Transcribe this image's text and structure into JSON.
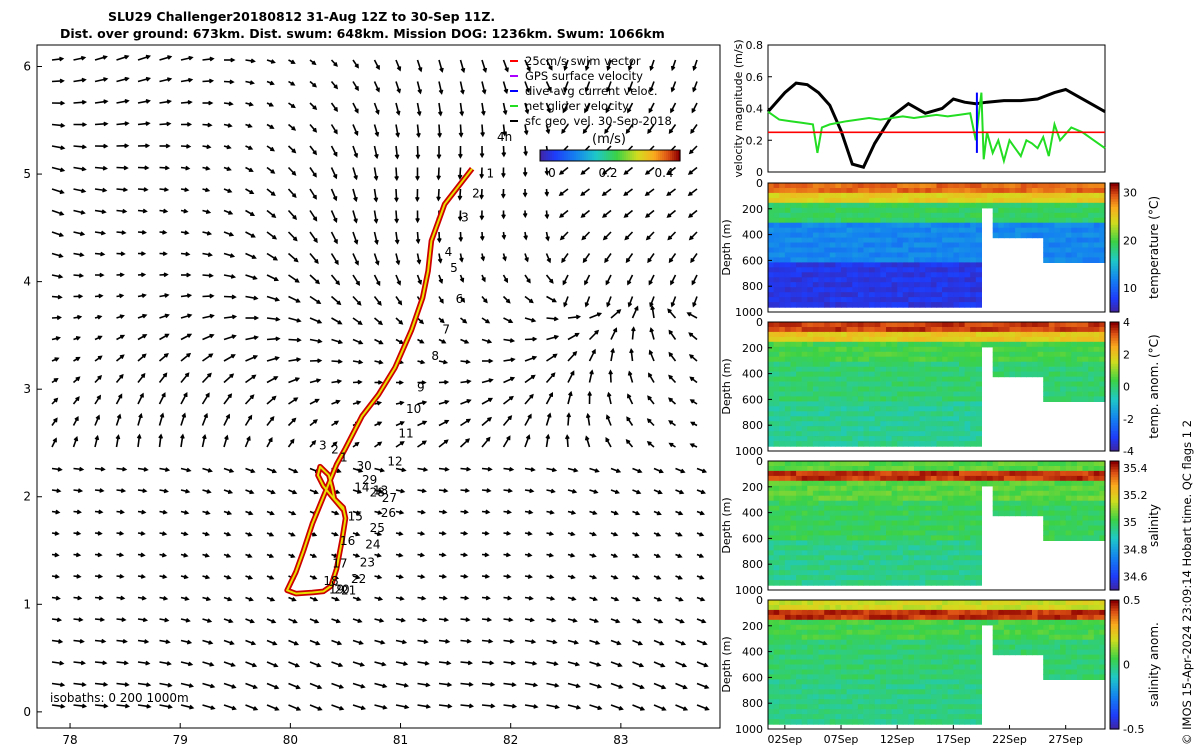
{
  "title": {
    "line1": "SLU29 Challenger20180812 31-Aug 12Z to 30-Sep 11Z.",
    "line2": "Dist. over ground: 673km. Dist. swum: 648km. Mission DOG: 1236km. Swum: 1066km"
  },
  "credit": "© IMOS 15-Apr-2024 23:09:14 Hobart time. QC flags 1  2",
  "colors": {
    "track_outer": "#cc0000",
    "track_inner": "#e8e000",
    "net_velocity": "#22dd22",
    "surface_velocity": "#000000",
    "threshold": "#ff0000",
    "dive_avg": "#0000ff"
  },
  "chart_data": [
    {
      "type": "scatter",
      "name": "map",
      "xlim": [
        77.7,
        83.9
      ],
      "ylim": [
        -0.15,
        6.2
      ],
      "xticks": [
        78,
        79,
        80,
        81,
        82,
        83
      ],
      "yticks": [
        0,
        1,
        2,
        3,
        4,
        5,
        6
      ],
      "legend": {
        "placement": "top-right",
        "entries": [
          "25cm/s swim vector",
          "GPS surface velocity",
          "dive-avg current veloc.",
          "net glider velocity",
          "sfc geo. vel. 30-Sep-2018"
        ],
        "colors": [
          "#ff0000",
          "#aa00ff",
          "#0000ff",
          "#22dd22",
          "#000000"
        ]
      },
      "colorbar": {
        "label": "(m/s)",
        "ticks": [
          "0",
          "0.2",
          "0.4"
        ],
        "range": [
          0,
          0.5
        ]
      },
      "track_label": "4h",
      "isobaths_label": "isobaths: 0   200  1000m",
      "track": [
        [
          81.65,
          5.05
        ],
        [
          81.4,
          4.72
        ],
        [
          81.28,
          4.38
        ],
        [
          81.25,
          4.1
        ],
        [
          81.2,
          3.85
        ],
        [
          81.1,
          3.55
        ],
        [
          80.95,
          3.2
        ],
        [
          80.8,
          2.95
        ],
        [
          80.65,
          2.75
        ],
        [
          80.5,
          2.45
        ],
        [
          80.42,
          2.3
        ],
        [
          80.3,
          2.0
        ],
        [
          80.2,
          1.75
        ],
        [
          80.12,
          1.5
        ],
        [
          80.05,
          1.3
        ],
        [
          79.97,
          1.13
        ],
        [
          80.05,
          1.1
        ],
        [
          80.2,
          1.11
        ],
        [
          80.3,
          1.12
        ],
        [
          80.37,
          1.17
        ],
        [
          80.42,
          1.33
        ],
        [
          80.47,
          1.6
        ],
        [
          80.5,
          1.8
        ],
        [
          80.48,
          1.9
        ],
        [
          80.4,
          1.98
        ],
        [
          80.38,
          2.08
        ],
        [
          80.35,
          2.2
        ],
        [
          80.27,
          2.28
        ],
        [
          80.25,
          2.2
        ],
        [
          80.3,
          2.1
        ],
        [
          80.38,
          2.0
        ],
        [
          80.48,
          1.88
        ]
      ],
      "day_labels": [
        {
          "t": "1",
          "x": 81.78,
          "y": 4.97
        },
        {
          "t": "2",
          "x": 81.65,
          "y": 4.78
        },
        {
          "t": "3",
          "x": 81.55,
          "y": 4.56
        },
        {
          "t": "4",
          "x": 81.4,
          "y": 4.24
        },
        {
          "t": "5",
          "x": 81.45,
          "y": 4.09
        },
        {
          "t": "6",
          "x": 81.5,
          "y": 3.8
        },
        {
          "t": "7",
          "x": 81.38,
          "y": 3.52
        },
        {
          "t": "8",
          "x": 81.28,
          "y": 3.27
        },
        {
          "t": "9",
          "x": 81.15,
          "y": 2.98
        },
        {
          "t": "10",
          "x": 81.05,
          "y": 2.78
        },
        {
          "t": "11",
          "x": 80.98,
          "y": 2.55
        },
        {
          "t": "12",
          "x": 80.88,
          "y": 2.29
        },
        {
          "t": "13",
          "x": 80.75,
          "y": 2.02
        },
        {
          "t": "14",
          "x": 80.58,
          "y": 2.05
        },
        {
          "t": "15",
          "x": 80.52,
          "y": 1.78
        },
        {
          "t": "16",
          "x": 80.45,
          "y": 1.55
        },
        {
          "t": "17",
          "x": 80.38,
          "y": 1.34
        },
        {
          "t": "18",
          "x": 80.3,
          "y": 1.18
        },
        {
          "t": "19",
          "x": 80.35,
          "y": 1.1
        },
        {
          "t": "20",
          "x": 80.4,
          "y": 1.1
        },
        {
          "t": "21",
          "x": 80.46,
          "y": 1.09
        },
        {
          "t": "22",
          "x": 80.55,
          "y": 1.2
        },
        {
          "t": "23",
          "x": 80.63,
          "y": 1.35
        },
        {
          "t": "24",
          "x": 80.68,
          "y": 1.52
        },
        {
          "t": "25",
          "x": 80.72,
          "y": 1.67
        },
        {
          "t": "26",
          "x": 80.82,
          "y": 1.81
        },
        {
          "t": "27",
          "x": 80.83,
          "y": 1.95
        },
        {
          "t": "28",
          "x": 80.72,
          "y": 2.0
        },
        {
          "t": "29",
          "x": 80.65,
          "y": 2.12
        },
        {
          "t": "30",
          "x": 80.6,
          "y": 2.25
        },
        {
          "t": "1",
          "x": 80.45,
          "y": 2.33
        },
        {
          "t": "2",
          "x": 80.37,
          "y": 2.4
        },
        {
          "t": "3",
          "x": 80.26,
          "y": 2.44
        }
      ]
    },
    {
      "type": "line",
      "name": "velocity",
      "ylabel": "velocity magnitude (m/s)",
      "xlim": [
        0,
        30
      ],
      "ylim": [
        0,
        0.8
      ],
      "yticks": [
        0,
        0.2,
        0.4,
        0.6,
        0.8
      ],
      "series": [
        {
          "color": "#000000",
          "x": [
            0,
            1.5,
            2.5,
            3.5,
            4.5,
            5.5,
            6.5,
            7.5,
            8.5,
            9.5,
            11,
            12.5,
            14,
            15.5,
            16.5,
            17.5,
            18.5,
            19.5,
            21,
            22.5,
            24,
            25.5,
            26.5,
            27.5,
            29,
            30
          ],
          "y": [
            0.38,
            0.5,
            0.56,
            0.55,
            0.5,
            0.42,
            0.26,
            0.05,
            0.03,
            0.18,
            0.35,
            0.43,
            0.37,
            0.4,
            0.46,
            0.44,
            0.43,
            0.44,
            0.45,
            0.45,
            0.46,
            0.5,
            0.52,
            0.48,
            0.42,
            0.38
          ]
        },
        {
          "color": "#22dd22",
          "x": [
            0,
            1,
            2,
            3,
            4,
            4.4,
            4.8,
            5.5,
            7,
            8,
            9,
            10,
            11,
            12,
            13,
            14,
            15,
            16,
            17,
            18,
            18.5,
            19,
            19.2,
            19.5,
            20,
            20.5,
            21,
            21.5,
            22,
            22.5,
            23,
            23.5,
            24,
            24.5,
            25,
            25.5,
            26,
            27,
            28,
            29,
            30
          ],
          "y": [
            0.38,
            0.33,
            0.32,
            0.31,
            0.3,
            0.12,
            0.28,
            0.3,
            0.32,
            0.33,
            0.34,
            0.33,
            0.34,
            0.35,
            0.34,
            0.35,
            0.36,
            0.35,
            0.36,
            0.37,
            0.2,
            0.5,
            0.08,
            0.25,
            0.12,
            0.2,
            0.07,
            0.2,
            0.15,
            0.1,
            0.2,
            0.18,
            0.15,
            0.22,
            0.1,
            0.3,
            0.2,
            0.28,
            0.25,
            0.2,
            0.15
          ]
        },
        {
          "color": "#ff0000",
          "x": [
            0,
            30
          ],
          "y": [
            0.25,
            0.25
          ]
        },
        {
          "color": "#0000ff",
          "x": [
            18.6,
            18.6
          ],
          "y": [
            0.12,
            0.5
          ]
        }
      ]
    },
    {
      "type": "heatmap",
      "name": "temperature",
      "ylabel": "Depth (m)",
      "clabel": "temperature (°C)",
      "ylim": [
        0,
        1000
      ],
      "yticks": [
        0,
        200,
        400,
        600,
        800,
        1000
      ],
      "cticks": [
        10,
        20,
        30
      ],
      "crange": [
        5,
        32
      ],
      "surface": 29,
      "mixed": 25,
      "upper": 19,
      "mid": 12,
      "deep": 7
    },
    {
      "type": "heatmap",
      "name": "temp-anomaly",
      "ylabel": "Depth (m)",
      "clabel": "temp. anom. (°C)",
      "ylim": [
        0,
        1000
      ],
      "yticks": [
        0,
        200,
        400,
        600,
        800,
        1000
      ],
      "cticks": [
        -4,
        -2,
        0,
        2,
        4
      ],
      "crange": [
        -4,
        4
      ],
      "surface": 3.5,
      "mixed": 2,
      "upper": 0.4,
      "mid": 0,
      "deep": -0.3
    },
    {
      "type": "heatmap",
      "name": "salinity",
      "ylabel": "Depth (m)",
      "clabel": "salinity",
      "ylim": [
        0,
        1000
      ],
      "yticks": [
        0,
        200,
        400,
        600,
        800,
        1000
      ],
      "cticks": [
        34.6,
        34.8,
        35,
        35.2,
        35.4
      ],
      "crange": [
        34.5,
        35.45
      ],
      "surface": 35.05,
      "mixed": 35.4,
      "upper": 35.05,
      "mid": 35.0,
      "deep": 34.95
    },
    {
      "type": "heatmap",
      "name": "salinity-anomaly",
      "ylabel": "Depth (m)",
      "clabel": "salinity anom.",
      "ylim": [
        0,
        1000
      ],
      "yticks": [
        0,
        200,
        400,
        600,
        800,
        1000
      ],
      "cticks": [
        -0.5,
        0,
        0.5
      ],
      "crange": [
        -0.5,
        0.5
      ],
      "surface": 0.2,
      "mixed": 0.45,
      "upper": 0.05,
      "mid": 0.0,
      "deep": -0.02,
      "xticks": [
        "02Sep",
        "07Sep",
        "12Sep",
        "17Sep",
        "22Sep",
        "27Sep"
      ],
      "xtick_days": [
        1.5,
        6.5,
        11.5,
        16.5,
        21.5,
        26.5
      ]
    }
  ]
}
